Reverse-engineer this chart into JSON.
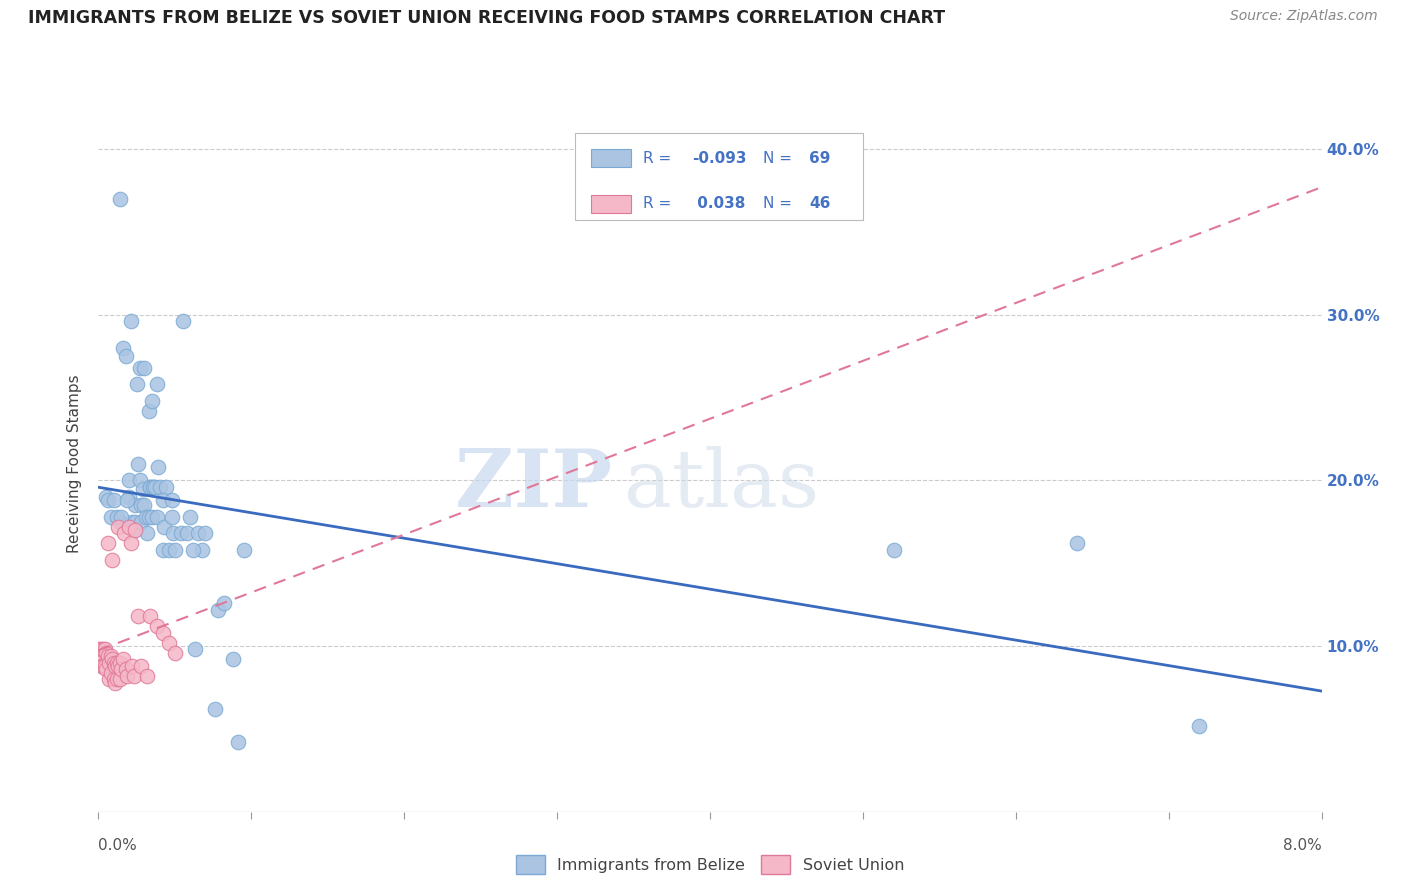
{
  "title": "IMMIGRANTS FROM BELIZE VS SOVIET UNION RECEIVING FOOD STAMPS CORRELATION CHART",
  "source": "Source: ZipAtlas.com",
  "ylabel": "Receiving Food Stamps",
  "xmin": 0.0,
  "xmax": 0.08,
  "ymin": 0.0,
  "ymax": 0.42,
  "belize_color": "#aac4e2",
  "belize_edge_color": "#7aaad4",
  "soviet_color": "#f5b8c8",
  "soviet_edge_color": "#e07898",
  "belize_line_color": "#3a6bbf",
  "soviet_line_color": "#e07898",
  "legend_belize_label": "Immigrants from Belize",
  "legend_soviet_label": "Soviet Union",
  "belize_R": "-0.093",
  "belize_N": "69",
  "soviet_R": "0.038",
  "soviet_N": "46",
  "watermark_zip": "ZIP",
  "watermark_atlas": "atlas",
  "background_color": "#ffffff",
  "grid_color": "#cccccc",
  "belize_x": [
    0.0005,
    0.0014,
    0.0014,
    0.0016,
    0.0018,
    0.002,
    0.002,
    0.0022,
    0.0023,
    0.0024,
    0.0024,
    0.0026,
    0.0027,
    0.0028,
    0.0028,
    0.0029,
    0.003,
    0.0031,
    0.0032,
    0.0033,
    0.0033,
    0.0034,
    0.0034,
    0.0035,
    0.0036,
    0.0036,
    0.0037,
    0.0038,
    0.0039,
    0.004,
    0.0042,
    0.0043,
    0.0044,
    0.0046,
    0.0048,
    0.0049,
    0.005,
    0.0054,
    0.0058,
    0.006,
    0.0063,
    0.0065,
    0.0068,
    0.007,
    0.0076,
    0.0078,
    0.0082,
    0.0088,
    0.0091,
    0.0095,
    0.0006,
    0.0008,
    0.001,
    0.0012,
    0.0015,
    0.0019,
    0.0021,
    0.0025,
    0.0027,
    0.003,
    0.0035,
    0.0038,
    0.0042,
    0.0048,
    0.0055,
    0.0062,
    0.052,
    0.064,
    0.072
  ],
  "belize_y": [
    0.19,
    0.37,
    0.175,
    0.28,
    0.275,
    0.2,
    0.19,
    0.175,
    0.17,
    0.185,
    0.175,
    0.21,
    0.2,
    0.185,
    0.175,
    0.195,
    0.185,
    0.178,
    0.168,
    0.178,
    0.242,
    0.196,
    0.196,
    0.178,
    0.196,
    0.196,
    0.196,
    0.178,
    0.208,
    0.196,
    0.158,
    0.172,
    0.196,
    0.158,
    0.178,
    0.168,
    0.158,
    0.168,
    0.168,
    0.178,
    0.098,
    0.168,
    0.158,
    0.168,
    0.062,
    0.122,
    0.126,
    0.092,
    0.042,
    0.158,
    0.188,
    0.178,
    0.188,
    0.178,
    0.178,
    0.188,
    0.296,
    0.258,
    0.268,
    0.268,
    0.248,
    0.258,
    0.188,
    0.188,
    0.296,
    0.158,
    0.158,
    0.162,
    0.052
  ],
  "soviet_x": [
    0.0,
    0.0001,
    0.0002,
    0.0002,
    0.0003,
    0.0003,
    0.0004,
    0.0004,
    0.0005,
    0.0005,
    0.0006,
    0.0006,
    0.0007,
    0.0007,
    0.0008,
    0.0008,
    0.0009,
    0.0009,
    0.001,
    0.001,
    0.0011,
    0.0011,
    0.0012,
    0.0012,
    0.0013,
    0.0013,
    0.0014,
    0.0014,
    0.0015,
    0.0016,
    0.0017,
    0.0018,
    0.0019,
    0.002,
    0.0021,
    0.0022,
    0.0023,
    0.0024,
    0.0026,
    0.0028,
    0.0032,
    0.0034,
    0.0038,
    0.0042,
    0.0046,
    0.005
  ],
  "soviet_y": [
    0.098,
    0.092,
    0.098,
    0.088,
    0.098,
    0.088,
    0.098,
    0.088,
    0.096,
    0.086,
    0.094,
    0.162,
    0.09,
    0.08,
    0.094,
    0.084,
    0.092,
    0.152,
    0.09,
    0.08,
    0.088,
    0.078,
    0.09,
    0.08,
    0.172,
    0.088,
    0.09,
    0.08,
    0.086,
    0.092,
    0.168,
    0.086,
    0.082,
    0.172,
    0.162,
    0.088,
    0.082,
    0.17,
    0.118,
    0.088,
    0.082,
    0.118,
    0.112,
    0.108,
    0.102,
    0.096
  ]
}
